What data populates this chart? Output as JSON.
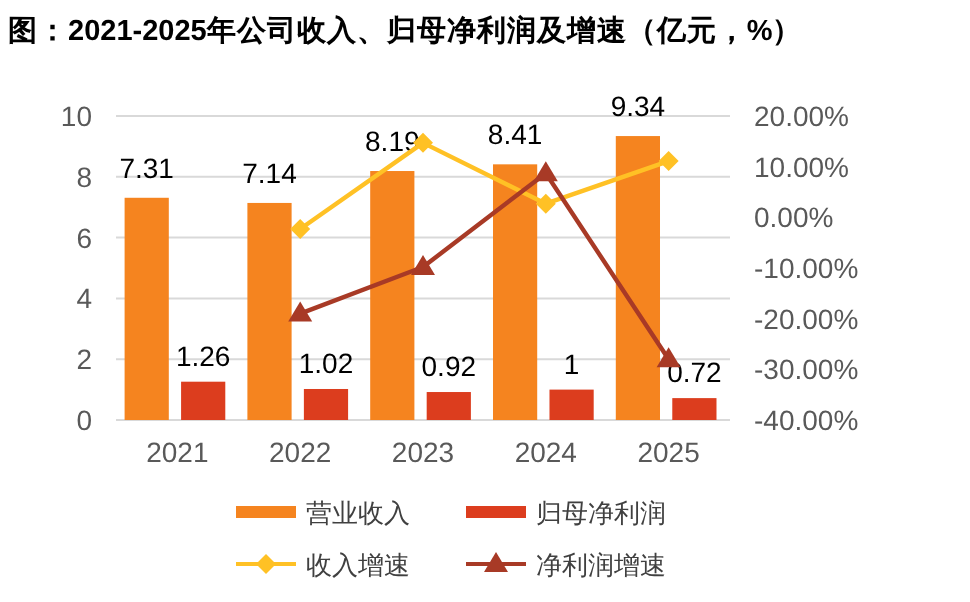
{
  "chart_data": {
    "type": "bar",
    "title": "图：2021-2025年公司收入、归母净利润及增速（亿元，%）",
    "categories": [
      "2021",
      "2022",
      "2023",
      "2024",
      "2025"
    ],
    "series": [
      {
        "name": "营业收入",
        "color": "#f5841f",
        "values": [
          7.31,
          7.14,
          8.19,
          8.41,
          9.34
        ],
        "value_labels": [
          "7.31",
          "7.14",
          "8.19",
          "8.41",
          "9.34"
        ]
      },
      {
        "name": "归母净利润",
        "color": "#dc3d1e",
        "values": [
          1.26,
          1.02,
          0.92,
          1,
          0.72
        ],
        "value_labels": [
          "1.26",
          "1.02",
          "0.92",
          "1",
          "0.72"
        ]
      },
      {
        "name": "收入增速",
        "type": "line",
        "axis": "y2",
        "marker": "diamond",
        "color": "#ffc125",
        "values": [
          null,
          -2.3,
          14.7,
          2.7,
          11.1
        ]
      },
      {
        "name": "净利润增速",
        "type": "line",
        "axis": "y2",
        "marker": "triangle",
        "color": "#a83a26",
        "values": [
          null,
          -19.0,
          -9.8,
          8.7,
          -28.0
        ]
      }
    ],
    "ylim": [
      0,
      10
    ],
    "yticks": [
      0,
      2,
      4,
      6,
      8,
      10
    ],
    "y2lim": [
      -40,
      20
    ],
    "y2ticks": [
      {
        "value": -40,
        "label": "-40.00%"
      },
      {
        "value": -30,
        "label": "-30.00%"
      },
      {
        "value": -20,
        "label": "-20.00%"
      },
      {
        "value": -10,
        "label": "-10.00%"
      },
      {
        "value": 0,
        "label": "0.00%"
      },
      {
        "value": 10,
        "label": "10.00%"
      },
      {
        "value": 20,
        "label": "20.00%"
      }
    ],
    "grid": "y",
    "legend": "bottom"
  }
}
